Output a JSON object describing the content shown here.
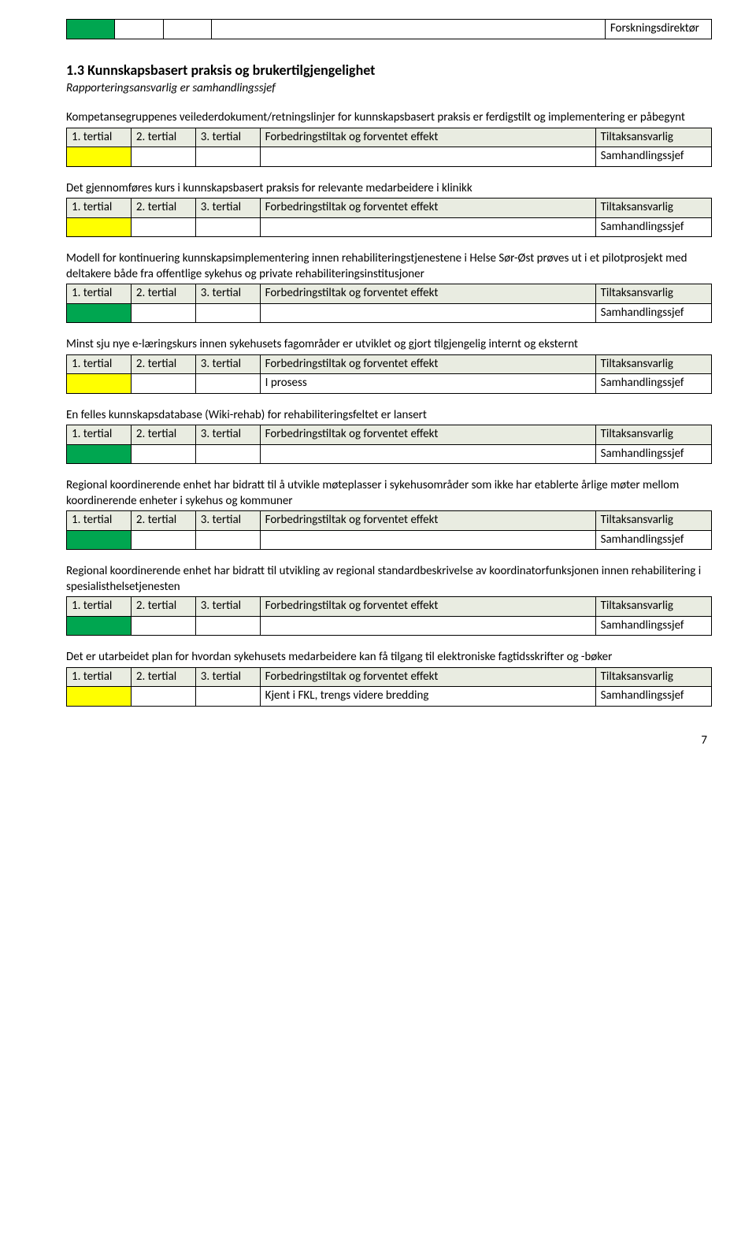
{
  "colors": {
    "green": "#00a650",
    "yellow": "#ffff00",
    "header_bg": "#e9ece1",
    "border": "#000000",
    "text": "#000000",
    "background": "#ffffff"
  },
  "top_row": {
    "cells": [
      "",
      "",
      "",
      "",
      "Forskningsdirektør"
    ],
    "cell_colors": [
      "#00a650",
      "#ffffff",
      "#ffffff",
      "#ffffff",
      "#ffffff"
    ]
  },
  "section": {
    "number_title": "1.3   Kunnskapsbasert praksis og brukertilgjengelighet",
    "subline": "Rapporteringsansvarlig er samhandlingssjef"
  },
  "table_headers": {
    "c0": "1. tertial",
    "c1": "2. tertial",
    "c2": "3. tertial",
    "c3": "Forbedringstiltak og forventet effekt",
    "c4": "Tiltaksansvarlig"
  },
  "blocks": [
    {
      "intro": "Kompetansegruppenes veilederdokument/retningslinjer for kunnskapsbasert praksis er ferdigstilt og implementering er påbegynt",
      "row": {
        "colors": [
          "yellow",
          "",
          "",
          "",
          ""
        ],
        "c3": "",
        "c4": "Samhandlingssjef"
      }
    },
    {
      "intro": "Det gjennomføres kurs i kunnskapsbasert praksis for relevante medarbeidere i klinikk",
      "row": {
        "colors": [
          "yellow",
          "",
          "",
          "",
          ""
        ],
        "c3": "",
        "c4": "Samhandlingssjef"
      }
    },
    {
      "intro": "Modell for kontinuering kunnskapsimplementering innen rehabiliteringstjenestene i Helse Sør-Øst prøves ut i et pilotprosjekt med deltakere både fra offentlige sykehus og private rehabiliteringsinstitusjoner",
      "row": {
        "colors": [
          "green",
          "",
          "",
          "",
          ""
        ],
        "c3": "",
        "c4": "Samhandlingssjef"
      }
    },
    {
      "intro": "Minst sju nye e-læringskurs innen sykehusets fagområder er utviklet og gjort tilgjengelig internt og eksternt",
      "row": {
        "colors": [
          "yellow",
          "",
          "",
          "",
          ""
        ],
        "c3": "I prosess",
        "c4": "Samhandlingssjef"
      }
    },
    {
      "intro": "En felles kunnskapsdatabase (Wiki-rehab) for rehabiliteringsfeltet er lansert",
      "row": {
        "colors": [
          "green",
          "",
          "",
          "",
          ""
        ],
        "c3": "",
        "c4": "Samhandlingssjef"
      }
    },
    {
      "intro": "Regional koordinerende enhet har bidratt til å utvikle møteplasser i sykehusområder som ikke har etablerte årlige møter mellom koordinerende enheter i sykehus og kommuner",
      "row": {
        "colors": [
          "green",
          "",
          "",
          "",
          ""
        ],
        "c3": "",
        "c4": "Samhandlingssjef"
      }
    },
    {
      "intro": "Regional koordinerende enhet har bidratt til utvikling av regional standardbeskrivelse av koordinatorfunksjonen innen rehabilitering i spesialisthelsetjenesten",
      "row": {
        "colors": [
          "green",
          "",
          "",
          "",
          ""
        ],
        "c3": "",
        "c4": "Samhandlingssjef"
      }
    },
    {
      "intro": "Det er utarbeidet plan for hvordan sykehusets medarbeidere kan få tilgang til elektroniske fagtidsskrifter og -bøker",
      "row": {
        "colors": [
          "yellow",
          "",
          "",
          "",
          ""
        ],
        "c3": "Kjent i FKL, trengs videre bredding",
        "c4": "Samhandlingssjef"
      }
    }
  ],
  "page_number": "7"
}
